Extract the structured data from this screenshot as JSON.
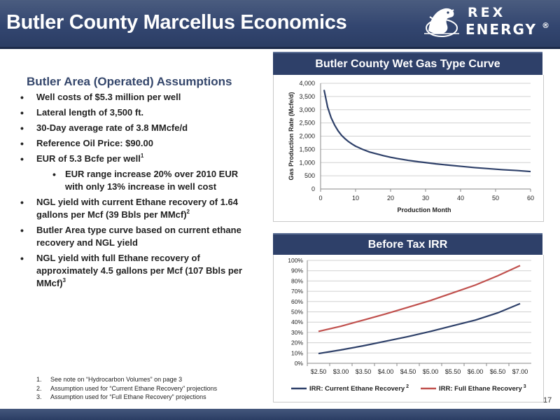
{
  "header": {
    "title": "Butler County Marcellus Economics",
    "logo": {
      "line1": "REX",
      "line2": "ENERGY",
      "mark": "®",
      "icon": "rex-dinosaur-icon"
    },
    "colors": {
      "bar": "#334670",
      "panel": "#2e4069"
    }
  },
  "assumptions": {
    "heading": "Butler Area (Operated) Assumptions",
    "items": [
      {
        "text": "Well costs of $5.3 million per well",
        "sup": ""
      },
      {
        "text": "Lateral length of 3,500 ft.",
        "sup": ""
      },
      {
        "text": "30-Day average rate of 3.8 MMcfe/d",
        "sup": ""
      },
      {
        "text": "Reference Oil Price: $90.00",
        "sup": ""
      },
      {
        "text": "EUR of 5.3 Bcfe per well",
        "sup": "1"
      },
      {
        "text": "EUR range increase 20% over 2010 EUR with only 13% increase in well cost",
        "sup": ""
      },
      {
        "text": "NGL yield with current Ethane recovery of 1.64 gallons per Mcf (39 Bbls per MMcf)",
        "sup": "2"
      },
      {
        "text": "Butler Area type curve based on current ethane recovery and NGL yield",
        "sup": ""
      },
      {
        "text": "NGL yield with full Ethane recovery of approximately 4.5 gallons per Mcf (107 Bbls per MMcf)",
        "sup": "3"
      }
    ]
  },
  "footnotes": [
    {
      "num": "1.",
      "text": "See note on “Hydrocarbon Volumes” on page 3"
    },
    {
      "num": "2.",
      "text": "Assumption used for “Current Ethane Recovery” projections"
    },
    {
      "num": "3.",
      "text": "Assumption used for “Full Ethane Recovery” projections"
    }
  ],
  "page_number": "17",
  "chart_data": [
    {
      "type": "line",
      "title": "Butler County Wet Gas Type Curve",
      "xlabel": "Production Month",
      "ylabel": "Gas Production Rate (Mcfe/d)",
      "xlim": [
        0,
        60
      ],
      "ylim": [
        0,
        4000
      ],
      "xticks": [
        "0",
        "10",
        "20",
        "30",
        "40",
        "50",
        "60"
      ],
      "yticks": [
        "0",
        "500",
        "1,000",
        "1,500",
        "2,000",
        "2,500",
        "3,000",
        "3,500",
        "4,000"
      ],
      "grid": true,
      "series": [
        {
          "color": "#2e4069",
          "x": [
            1,
            2,
            3,
            4,
            5,
            6,
            7,
            8,
            9,
            10,
            12,
            14,
            16,
            18,
            20,
            22,
            25,
            28,
            30,
            33,
            36,
            40,
            44,
            48,
            52,
            56,
            60
          ],
          "y": [
            3750,
            3100,
            2700,
            2420,
            2200,
            2030,
            1900,
            1790,
            1700,
            1620,
            1500,
            1400,
            1330,
            1260,
            1200,
            1150,
            1085,
            1030,
            1000,
            950,
            910,
            860,
            810,
            770,
            730,
            700,
            660
          ]
        }
      ]
    },
    {
      "type": "line",
      "title": "Before Tax IRR",
      "xlabel": "",
      "ylabel": "",
      "categories": [
        "$2.50",
        "$3.00",
        "$3.50",
        "$4.00",
        "$4.50",
        "$5.00",
        "$5.50",
        "$6.00",
        "$6.50",
        "$7.00"
      ],
      "ylim": [
        0,
        100
      ],
      "yticks": [
        "0%",
        "10%",
        "20%",
        "30%",
        "40%",
        "50%",
        "60%",
        "70%",
        "80%",
        "90%",
        "100%"
      ],
      "grid": true,
      "legend": "bottom",
      "series": [
        {
          "name": "IRR: Current Ethane Recovery",
          "sup": "2",
          "color": "#2e4069",
          "values": [
            9.5,
            13,
            17,
            21.5,
            26,
            31,
            36.5,
            42,
            49,
            58
          ]
        },
        {
          "name": "IRR: Full Ethane Recovery",
          "sup": "3",
          "color": "#c0504d",
          "values": [
            31,
            36,
            42,
            48,
            54.5,
            61,
            68.5,
            76,
            85,
            95
          ]
        }
      ]
    }
  ]
}
